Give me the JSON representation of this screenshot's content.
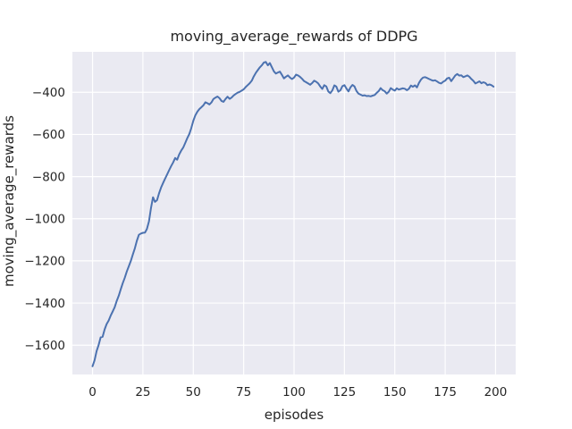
{
  "figure": {
    "title": "moving_average_rewards of DDPG",
    "xlabel": "episodes",
    "ylabel": "moving_average_rewards"
  },
  "chart_data": {
    "type": "line",
    "title": "moving_average_rewards of DDPG",
    "xlabel": "episodes",
    "ylabel": "moving_average_rewards",
    "xlim": [
      -10,
      210
    ],
    "ylim": [
      -1739,
      -208
    ],
    "grid": true,
    "legend": false,
    "style": "seaborn-darkgrid",
    "x_ticks": [
      0,
      25,
      50,
      75,
      100,
      125,
      150,
      175,
      200
    ],
    "x_tick_labels": [
      "0",
      "25",
      "50",
      "75",
      "100",
      "125",
      "150",
      "175",
      "200"
    ],
    "y_ticks": [
      -400,
      -600,
      -800,
      -1000,
      -1200,
      -1400,
      -1600
    ],
    "y_tick_labels": [
      "−400",
      "−600",
      "−800",
      "−1000",
      "−1200",
      "−1400",
      "−1600"
    ],
    "colors": {
      "line": "#4C72B0",
      "plot_background": "#EAEAF2",
      "gridline": "#FFFFFF",
      "figure_background": "#FFFFFF",
      "text": "#262626"
    },
    "series": [
      {
        "name": "moving_average_rewards",
        "x_start": 0,
        "x_step": 1,
        "n_points": 200,
        "values": [
          -1700,
          -1672,
          -1628,
          -1600,
          -1563,
          -1560,
          -1525,
          -1500,
          -1483,
          -1460,
          -1440,
          -1420,
          -1390,
          -1365,
          -1335,
          -1305,
          -1280,
          -1250,
          -1226,
          -1200,
          -1170,
          -1140,
          -1105,
          -1076,
          -1070,
          -1067,
          -1066,
          -1048,
          -1012,
          -950,
          -898,
          -920,
          -912,
          -880,
          -852,
          -830,
          -810,
          -790,
          -770,
          -750,
          -733,
          -712,
          -720,
          -695,
          -677,
          -662,
          -640,
          -618,
          -598,
          -570,
          -535,
          -510,
          -492,
          -480,
          -471,
          -462,
          -447,
          -452,
          -458,
          -448,
          -432,
          -425,
          -420,
          -428,
          -441,
          -445,
          -432,
          -421,
          -431,
          -425,
          -415,
          -408,
          -402,
          -398,
          -392,
          -386,
          -375,
          -366,
          -357,
          -345,
          -325,
          -308,
          -295,
          -282,
          -272,
          -259,
          -256,
          -272,
          -261,
          -281,
          -301,
          -311,
          -306,
          -302,
          -318,
          -334,
          -326,
          -320,
          -330,
          -337,
          -330,
          -316,
          -320,
          -327,
          -336,
          -347,
          -352,
          -358,
          -364,
          -356,
          -345,
          -350,
          -358,
          -372,
          -384,
          -366,
          -372,
          -396,
          -404,
          -391,
          -367,
          -373,
          -397,
          -390,
          -371,
          -366,
          -382,
          -396,
          -377,
          -365,
          -372,
          -394,
          -406,
          -411,
          -416,
          -414,
          -418,
          -417,
          -419,
          -416,
          -413,
          -403,
          -394,
          -380,
          -390,
          -395,
          -406,
          -397,
          -380,
          -387,
          -392,
          -381,
          -387,
          -384,
          -381,
          -383,
          -390,
          -383,
          -368,
          -374,
          -367,
          -377,
          -355,
          -340,
          -330,
          -328,
          -332,
          -337,
          -341,
          -345,
          -343,
          -349,
          -355,
          -358,
          -350,
          -345,
          -334,
          -331,
          -347,
          -334,
          -320,
          -313,
          -321,
          -319,
          -328,
          -324,
          -320,
          -326,
          -337,
          -346,
          -358,
          -353,
          -348,
          -357,
          -352,
          -356,
          -366,
          -363,
          -366,
          -373
        ]
      }
    ]
  }
}
